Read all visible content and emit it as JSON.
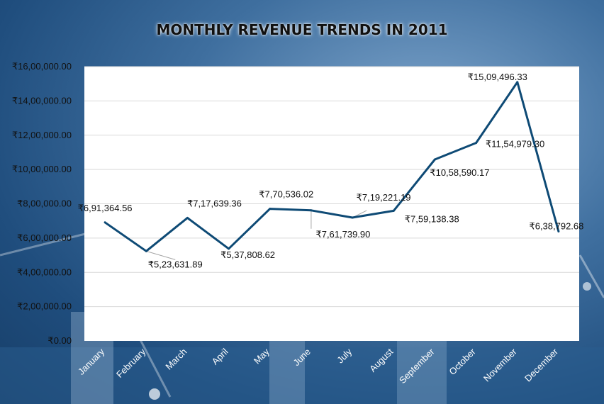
{
  "chart_data": {
    "type": "line",
    "title": "MONTHLY REVENUE TRENDS IN 2011",
    "xlabel": "",
    "ylabel": "",
    "categories": [
      "January",
      "February",
      "March",
      "April",
      "May",
      "June",
      "July",
      "August",
      "September",
      "October",
      "November",
      "December"
    ],
    "values": [
      691364.56,
      523631.89,
      717639.36,
      537808.62,
      770536.02,
      761739.9,
      719221.19,
      759138.38,
      1058590.17,
      1154979.3,
      1509496.33,
      638792.68
    ],
    "data_labels": [
      "₹6,91,364.56",
      "₹5,23,631.89",
      "₹7,17,639.36",
      "₹5,37,808.62",
      "₹7,70,536.02",
      "₹7,61,739.90",
      "₹7,19,221.19",
      "₹7,59,138.38",
      "₹10,58,590.17",
      "₹11,54,979.30",
      "₹15,09,496.33",
      "₹6,38,792.68"
    ],
    "ylim": [
      0,
      1600000
    ],
    "y_ticks": [
      0,
      200000,
      400000,
      600000,
      800000,
      1000000,
      1200000,
      1400000,
      1600000
    ],
    "y_tick_labels": [
      "₹0.00",
      "₹2,00,000.00",
      "₹4,00,000.00",
      "₹6,00,000.00",
      "₹8,00,000.00",
      "₹10,00,000.00",
      "₹12,00,000.00",
      "₹14,00,000.00",
      "₹16,00,000.00"
    ],
    "grid": true,
    "legend": "none",
    "line_color": "#0e4a75"
  }
}
